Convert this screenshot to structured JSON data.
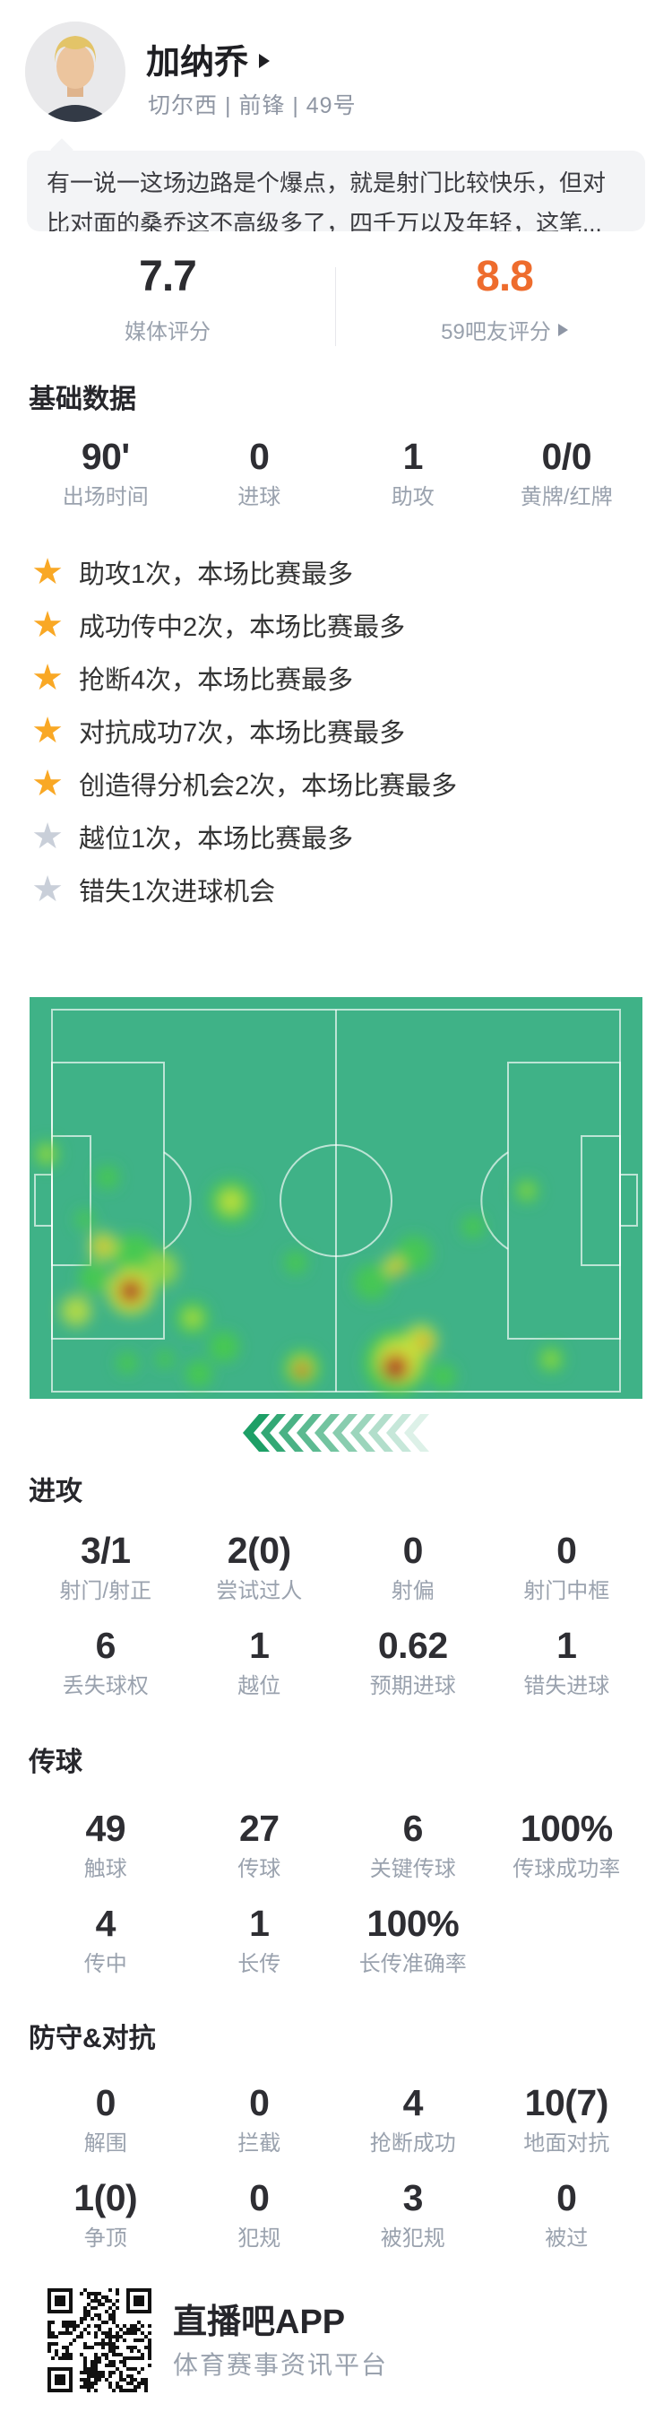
{
  "player": {
    "name": "加纳乔",
    "meta": "切尔西 | 前锋 | 49号"
  },
  "comment": {
    "text": "有一说一这场边路是个爆点，就是射门比较快乐，但对比对面的桑乔这不高级多了，四千万以及年轻，这笔..."
  },
  "ratings": {
    "media": {
      "value": "7.7",
      "label": "媒体评分"
    },
    "fans": {
      "value": "8.8",
      "label": "59吧友评分",
      "accent_color": "#ee6c2d"
    }
  },
  "basic": {
    "title": "基础数据",
    "stats": [
      {
        "value": "90'",
        "label": "出场时间"
      },
      {
        "value": "0",
        "label": "进球"
      },
      {
        "value": "1",
        "label": "助攻"
      },
      {
        "value": "0/0",
        "label": "黄牌/红牌"
      }
    ]
  },
  "highlights": [
    {
      "text": "助攻1次，本场比赛最多",
      "starred": true,
      "star_color": "#f9a825"
    },
    {
      "text": "成功传中2次，本场比赛最多",
      "starred": true,
      "star_color": "#f9a825"
    },
    {
      "text": "抢断4次，本场比赛最多",
      "starred": true,
      "star_color": "#f9a825"
    },
    {
      "text": "对抗成功7次，本场比赛最多",
      "starred": true,
      "star_color": "#f9a825"
    },
    {
      "text": "创造得分机会2次，本场比赛最多",
      "starred": true,
      "star_color": "#f9a825"
    },
    {
      "text": "越位1次，本场比赛最多",
      "starred": false,
      "star_color": "#c9cfd9"
    },
    {
      "text": "错失1次进球机会",
      "starred": false,
      "star_color": "#c9cfd9"
    }
  ],
  "heatmap": {
    "pitch_color": "#3fb287",
    "attack_direction": "left"
  },
  "sections": {
    "attack": {
      "title": "进攻",
      "rows": [
        [
          {
            "value": "3/1",
            "label": "射门/射正"
          },
          {
            "value": "2(0)",
            "label": "尝试过人"
          },
          {
            "value": "0",
            "label": "射偏"
          },
          {
            "value": "0",
            "label": "射门中框"
          }
        ],
        [
          {
            "value": "6",
            "label": "丢失球权"
          },
          {
            "value": "1",
            "label": "越位"
          },
          {
            "value": "0.62",
            "label": "预期进球"
          },
          {
            "value": "1",
            "label": "错失进球"
          }
        ]
      ]
    },
    "passing": {
      "title": "传球",
      "rows": [
        [
          {
            "value": "49",
            "label": "触球"
          },
          {
            "value": "27",
            "label": "传球"
          },
          {
            "value": "6",
            "label": "关键传球"
          },
          {
            "value": "100%",
            "label": "传球成功率"
          }
        ],
        [
          {
            "value": "4",
            "label": "传中"
          },
          {
            "value": "1",
            "label": "长传"
          },
          {
            "value": "100%",
            "label": "长传准确率"
          }
        ]
      ]
    },
    "defense": {
      "title": "防守&对抗",
      "rows": [
        [
          {
            "value": "0",
            "label": "解围"
          },
          {
            "value": "0",
            "label": "拦截"
          },
          {
            "value": "4",
            "label": "抢断成功"
          },
          {
            "value": "10(7)",
            "label": "地面对抗"
          }
        ],
        [
          {
            "value": "1(0)",
            "label": "争顶"
          },
          {
            "value": "0",
            "label": "犯规"
          },
          {
            "value": "3",
            "label": "被犯规"
          },
          {
            "value": "0",
            "label": "被过"
          }
        ]
      ]
    }
  },
  "footer": {
    "app_name": "直播吧APP",
    "tagline": "体育赛事资讯平台"
  },
  "icons": {
    "star": "★"
  }
}
